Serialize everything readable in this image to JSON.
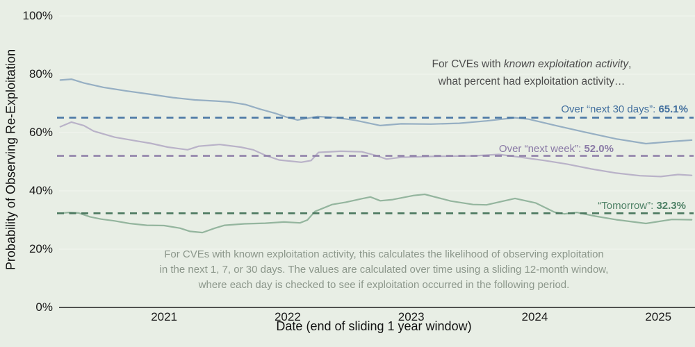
{
  "page": {
    "background": "#e8eee5"
  },
  "annotation": {
    "line1_prefix": "For CVEs with ",
    "line1_italic": "known exploitation activity",
    "line1_suffix": ",",
    "line2": "what percent had exploitation activity…"
  },
  "caption": {
    "lines": [
      "For CVEs with known exploitation activity, this calculates the likelihood of observing exploitation",
      "in the next 1, 7, or 30 days. The values are calculated over time using a sliding 12-month window,",
      "where each day is checked to see if exploitation occurred in the following period."
    ]
  },
  "chart_data": {
    "type": "line",
    "xlabel": "Date (end of sliding 1 year window)",
    "ylabel": "Probability of Observing Re-Exploitation",
    "x_ticks": [
      "2021",
      "2022",
      "2023",
      "2024",
      "2025"
    ],
    "x_tick_years": [
      2021,
      2022,
      2023,
      2024,
      2025
    ],
    "y_ticks": [
      "100%",
      "80%",
      "60%",
      "40%",
      "20%",
      "0%"
    ],
    "y_tick_values": [
      100,
      80,
      60,
      40,
      20,
      0
    ],
    "xlim": [
      2020.15,
      2025.28
    ],
    "ylim": [
      0,
      100
    ],
    "grid": true,
    "grid_color": "#f2f6ee",
    "axis_color": "#3b3b3b",
    "legend_position": "inline-right",
    "series": [
      {
        "id": "next-30-days",
        "label": "Over “next 30 days”: ",
        "value_label": "65.1%",
        "reference_value": 65.1,
        "color": "#96afc3",
        "dash_color": "#4b78a5",
        "label_color": "#426f9e",
        "x": [
          2020.16,
          2020.25,
          2020.35,
          2020.51,
          2020.69,
          2020.88,
          2021.07,
          2021.25,
          2021.42,
          2021.53,
          2021.66,
          2021.78,
          2021.9,
          2021.99,
          2022.08,
          2022.24,
          2022.38,
          2022.55,
          2022.75,
          2022.92,
          2023.16,
          2023.39,
          2023.61,
          2023.84,
          2023.95,
          2024.17,
          2024.4,
          2024.66,
          2024.9,
          2025.13,
          2025.27
        ],
        "y": [
          78.0,
          78.3,
          77.0,
          75.5,
          74.3,
          73.2,
          72.0,
          71.2,
          70.8,
          70.5,
          69.6,
          68.0,
          66.6,
          65.3,
          64.3,
          65.5,
          65.2,
          64.2,
          62.4,
          63.0,
          62.9,
          63.2,
          64.0,
          65.1,
          64.6,
          62.4,
          60.2,
          57.8,
          56.2,
          57.0,
          57.4
        ]
      },
      {
        "id": "next-week",
        "label": "Over “next week”: ",
        "value_label": "52.0%",
        "reference_value": 52.0,
        "color": "#b9b2c8",
        "dash_color": "#9182aa",
        "label_color": "#8a7aa6",
        "x": [
          2020.16,
          2020.25,
          2020.35,
          2020.43,
          2020.6,
          2020.79,
          2020.89,
          2021.03,
          2021.19,
          2021.28,
          2021.45,
          2021.62,
          2021.72,
          2021.82,
          2021.93,
          2022.11,
          2022.19,
          2022.25,
          2022.43,
          2022.6,
          2022.71,
          2022.8,
          2022.92,
          2023.16,
          2023.5,
          2023.71,
          2023.89,
          2024.08,
          2024.26,
          2024.46,
          2024.66,
          2024.85,
          2025.02,
          2025.16,
          2025.27
        ],
        "y": [
          62.0,
          63.6,
          62.4,
          60.5,
          58.4,
          57.0,
          56.3,
          55.0,
          54.1,
          55.3,
          55.9,
          55.0,
          54.1,
          52.2,
          50.6,
          49.8,
          50.4,
          53.2,
          53.6,
          53.4,
          52.2,
          50.9,
          51.5,
          51.8,
          52.0,
          52.5,
          51.5,
          50.4,
          49.2,
          47.5,
          46.1,
          45.2,
          44.9,
          45.6,
          45.3
        ]
      },
      {
        "id": "tomorrow",
        "label": "“Tomorrow”: ",
        "value_label": "32.3%",
        "reference_value": 32.3,
        "color": "#94b59e",
        "dash_color": "#4b785f",
        "label_color": "#4f8267",
        "x": [
          2020.16,
          2020.23,
          2020.31,
          2020.4,
          2020.49,
          2020.6,
          2020.72,
          2020.86,
          2021.0,
          2021.13,
          2021.21,
          2021.31,
          2021.41,
          2021.49,
          2021.65,
          2021.82,
          2021.97,
          2022.1,
          2022.16,
          2022.22,
          2022.36,
          2022.47,
          2022.6,
          2022.67,
          2022.75,
          2022.85,
          2023.02,
          2023.11,
          2023.32,
          2023.5,
          2023.61,
          2023.84,
          2024.01,
          2024.16,
          2024.24,
          2024.34,
          2024.49,
          2024.66,
          2024.9,
          2025.11,
          2025.27
        ],
        "y": [
          32.3,
          32.6,
          32.4,
          31.1,
          30.3,
          29.7,
          28.8,
          28.2,
          28.1,
          27.2,
          26.1,
          25.7,
          27.2,
          28.2,
          28.7,
          28.9,
          29.3,
          29.0,
          30.0,
          32.9,
          35.3,
          36.1,
          37.3,
          37.9,
          36.6,
          37.0,
          38.4,
          38.8,
          36.5,
          35.3,
          35.2,
          37.4,
          35.8,
          32.7,
          32.1,
          32.6,
          31.3,
          30.1,
          28.8,
          30.2,
          30.1
        ]
      }
    ]
  }
}
